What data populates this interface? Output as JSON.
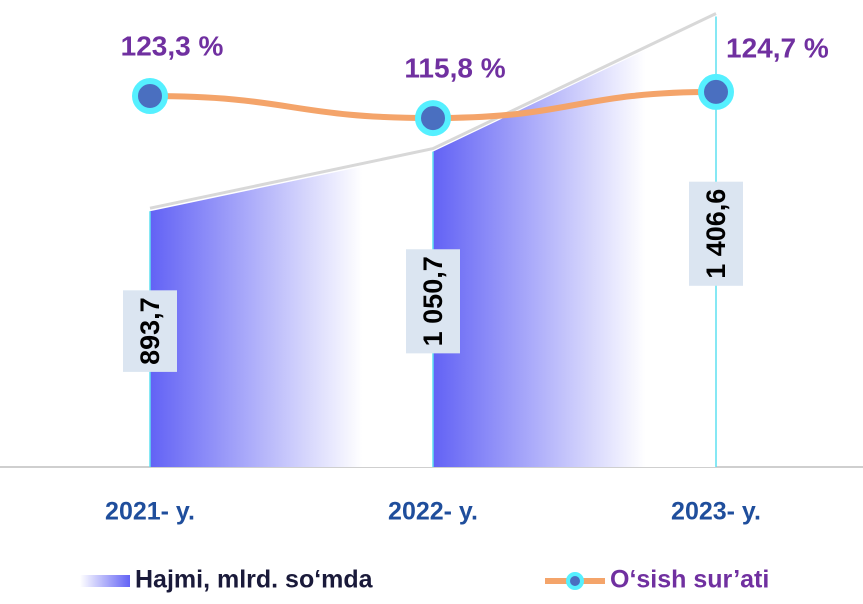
{
  "chart_data": {
    "type": "area_line",
    "categories": [
      "2021- y.",
      "2022- y.",
      "2023- y."
    ],
    "ylim": [
      220,
      1450
    ],
    "y2lim": [
      -3,
      156
    ],
    "series": [
      {
        "name": "Hajmi, mlrd. so‘mda",
        "type": "area",
        "color": "#6666ff",
        "values": [
          893.7,
          1050.7,
          1406.6
        ],
        "value_labels": [
          "893,7",
          "1 050,7",
          "1 406,6"
        ]
      },
      {
        "name": "O‘sish sur’ati",
        "type": "line",
        "axis": "y2",
        "color": "#f4a46a",
        "values": [
          123.3,
          115.8,
          124.7
        ],
        "value_labels": [
          "123,3 %",
          "115,8 %",
          "124,7 %"
        ]
      }
    ]
  }
}
